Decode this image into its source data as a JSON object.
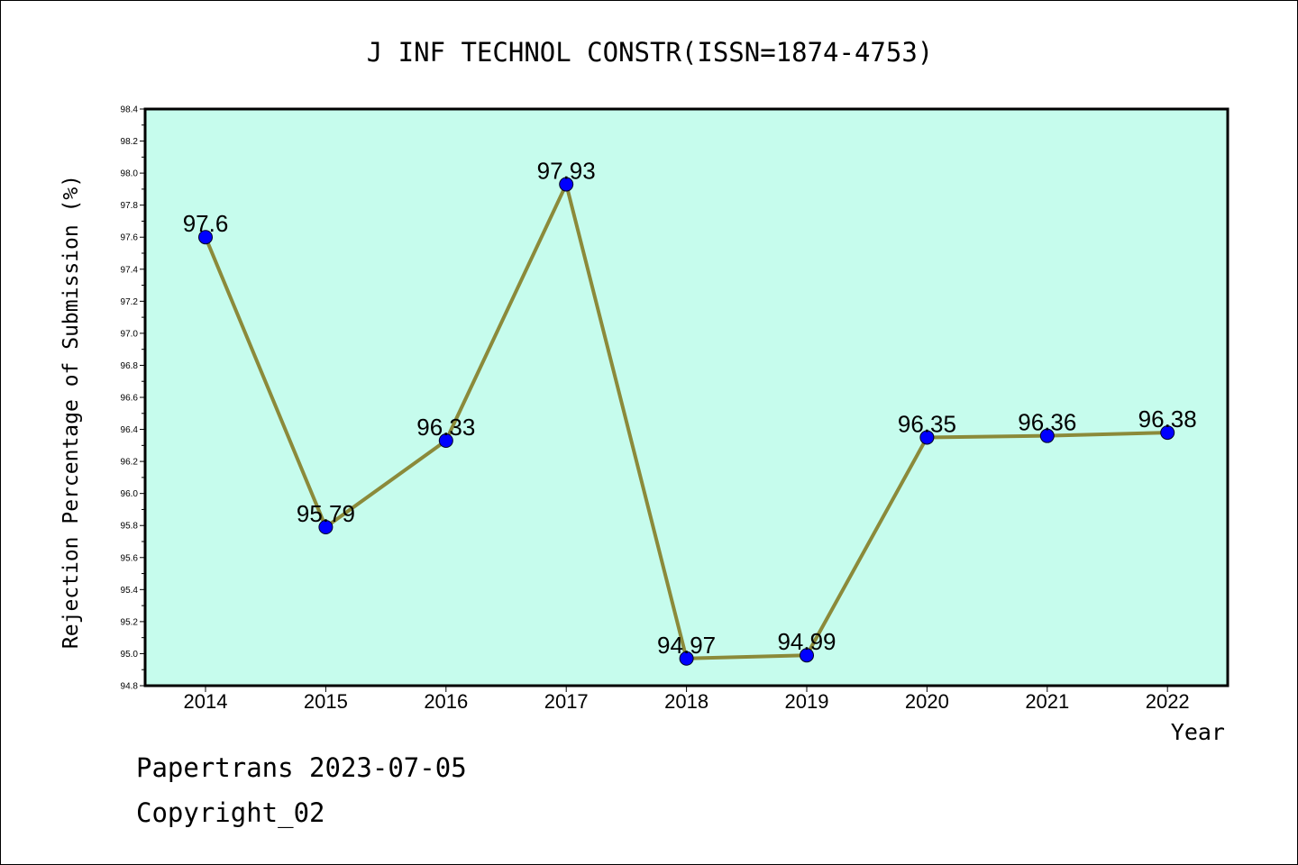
{
  "chart_data": {
    "type": "line",
    "title": "J INF TECHNOL CONSTR(ISSN=1874-4753)",
    "xlabel": "Year",
    "ylabel": "Rejection Percentage of Submission (%)",
    "categories": [
      "2014",
      "2015",
      "2016",
      "2017",
      "2018",
      "2019",
      "2020",
      "2021",
      "2022"
    ],
    "values": [
      97.6,
      95.79,
      96.33,
      97.93,
      94.97,
      94.99,
      96.35,
      96.36,
      96.38
    ],
    "data_labels": [
      "97.6",
      "95.79",
      "96.33",
      "97.93",
      "94.97",
      "94.99",
      "96.35",
      "96.36",
      "96.38"
    ],
    "ylim": [
      94.8,
      98.4
    ],
    "yticks": [
      "94.8",
      "95.0",
      "95.2",
      "95.4",
      "95.6",
      "95.8",
      "96.0",
      "96.2",
      "96.4",
      "96.6",
      "96.8",
      "97.0",
      "97.2",
      "97.4",
      "97.6",
      "97.8",
      "98.0",
      "98.2",
      "98.4"
    ],
    "grid": false,
    "colors": {
      "plot_background": "#c6fced",
      "line": "#8b8a3a",
      "marker": "#0000ff"
    }
  },
  "footer": {
    "line1": "Papertrans 2023-07-05",
    "line2": "Copyright_02"
  }
}
